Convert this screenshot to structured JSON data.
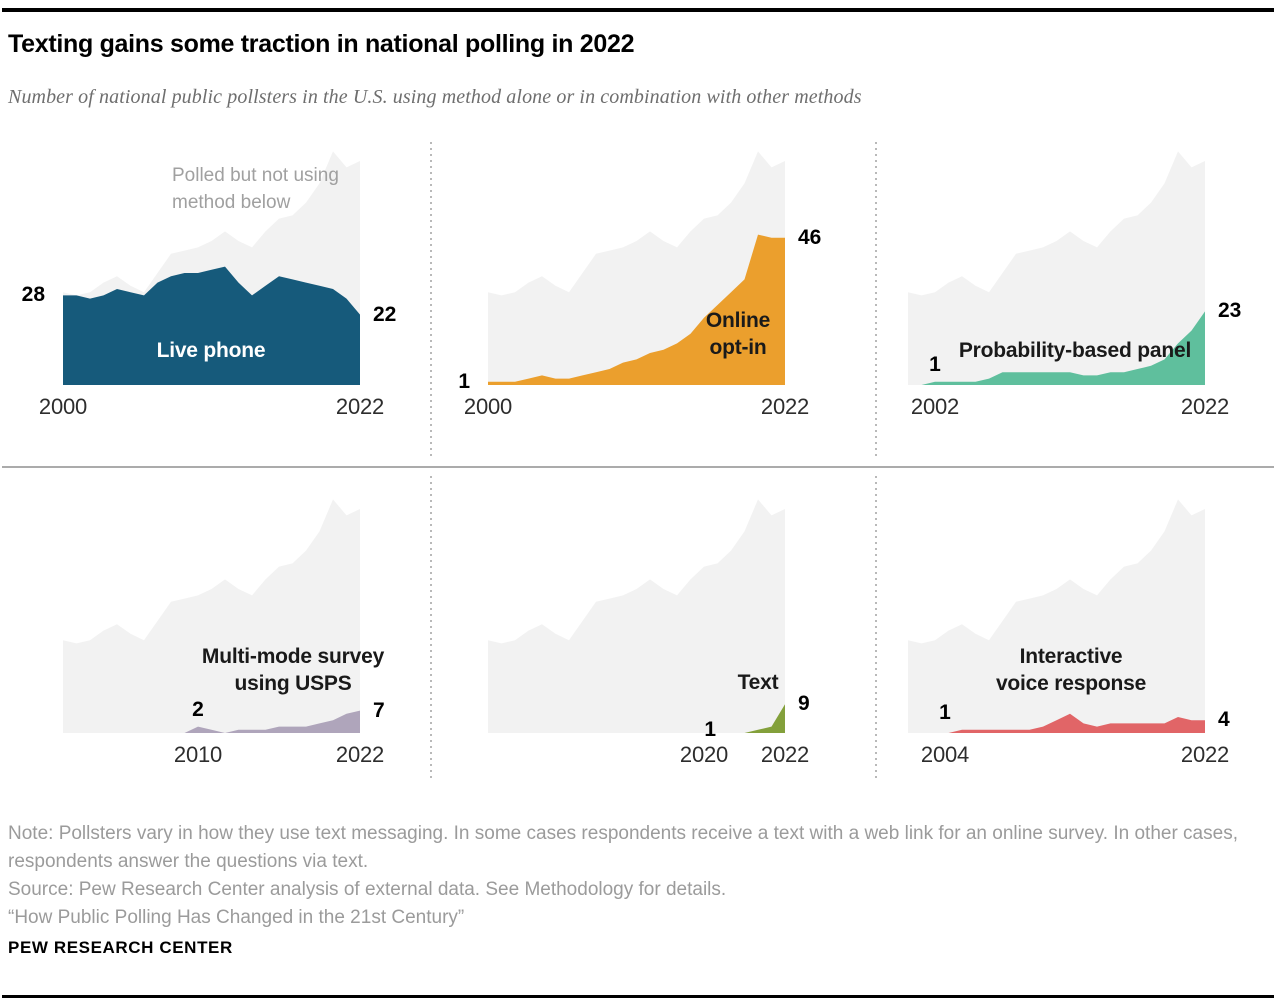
{
  "header": {
    "title": "Texting gains some traction in national polling in 2022",
    "subtitle": "Number of national public pollsters in the U.S. using method alone or in combination with other methods"
  },
  "chart_data": {
    "type": "area",
    "title": "Texting gains some traction in national polling in 2022",
    "x_range": [
      2000,
      2022
    ],
    "ylim": [
      0,
      75
    ],
    "grid": false,
    "years": [
      2000,
      2001,
      2002,
      2003,
      2004,
      2005,
      2006,
      2007,
      2008,
      2009,
      2010,
      2011,
      2012,
      2013,
      2014,
      2015,
      2016,
      2017,
      2018,
      2019,
      2020,
      2021,
      2022
    ],
    "background_series": {
      "label_line1": "Polled but not using",
      "label_line2": "method below",
      "color": "#f2f2f2",
      "values": [
        29,
        28,
        29,
        32,
        34,
        31,
        29,
        35,
        41,
        42,
        43,
        45,
        48,
        45,
        43,
        48,
        52,
        53,
        57,
        63,
        73,
        68,
        70
      ]
    },
    "panels": [
      {
        "id": "live-phone",
        "method": "Live phone",
        "label_lines": [
          "Live phone"
        ],
        "color": "#165a7b",
        "label_text_color": "#ffffff",
        "values": [
          28,
          28,
          27,
          28,
          30,
          29,
          28,
          32,
          34,
          35,
          35,
          36,
          37,
          32,
          28,
          31,
          34,
          33,
          32,
          31,
          30,
          27,
          22
        ],
        "start_label": {
          "text": "28",
          "year": 2000,
          "value": 28
        },
        "end_label": {
          "text": "22",
          "value": 22
        },
        "ticks": {
          "start": "2000",
          "end": "2022"
        }
      },
      {
        "id": "online-opt-in",
        "method": "Online opt-in",
        "label_lines": [
          "Online",
          "opt-in"
        ],
        "color": "#eb9f2d",
        "label_text_color": "#1a1a1a",
        "values": [
          1,
          1,
          1,
          2,
          3,
          2,
          2,
          3,
          4,
          5,
          7,
          8,
          10,
          11,
          13,
          16,
          21,
          25,
          29,
          33,
          47,
          46,
          46
        ],
        "start_label": {
          "text": "1",
          "year": 2000,
          "value": 1
        },
        "end_label": {
          "text": "46",
          "value": 46
        },
        "ticks": {
          "start": "2000",
          "end": "2022"
        }
      },
      {
        "id": "probability-based-panel",
        "method": "Probability-based panel",
        "label_lines": [
          "Probability-based panel"
        ],
        "color": "#5fbf9d",
        "label_text_color": "#1a1a1a",
        "values": [
          0,
          0,
          1,
          1,
          1,
          1,
          2,
          4,
          4,
          4,
          4,
          4,
          4,
          3,
          3,
          4,
          4,
          5,
          6,
          8,
          13,
          17,
          23
        ],
        "start_label": {
          "text": "1",
          "year": 2002,
          "value": 1
        },
        "end_label": {
          "text": "23",
          "value": 23
        },
        "ticks": {
          "start": "2002",
          "end": "2022"
        }
      },
      {
        "id": "multi-mode-usps",
        "method": "Multi-mode survey using USPS",
        "label_lines": [
          "Multi-mode survey",
          "using USPS"
        ],
        "color": "#afa5bb",
        "label_text_color": "#1a1a1a",
        "values": [
          null,
          null,
          null,
          null,
          null,
          null,
          null,
          null,
          null,
          0,
          2,
          1,
          0,
          1,
          1,
          1,
          2,
          2,
          2,
          3,
          4,
          6,
          7
        ],
        "start_label": {
          "text": "2",
          "year": 2010,
          "value": 2
        },
        "end_label": {
          "text": "7",
          "value": 7
        },
        "ticks": {
          "start": "2010",
          "end": "2022"
        }
      },
      {
        "id": "text",
        "method": "Text",
        "label_lines": [
          "Text"
        ],
        "color": "#83a03b",
        "label_text_color": "#1a1a1a",
        "values": [
          null,
          null,
          null,
          null,
          null,
          null,
          null,
          null,
          null,
          null,
          null,
          null,
          null,
          null,
          null,
          null,
          null,
          null,
          null,
          0,
          1,
          2,
          9
        ],
        "start_label": {
          "text": "1",
          "year": 2020,
          "value": 1
        },
        "end_label": {
          "text": "9",
          "value": 9
        },
        "ticks": {
          "start": "2020",
          "end": "2022"
        }
      },
      {
        "id": "interactive-voice-response",
        "method": "Interactive voice response",
        "label_lines": [
          "Interactive",
          "voice response"
        ],
        "color": "#e16567",
        "label_text_color": "#1a1a1a",
        "values": [
          null,
          null,
          0,
          0,
          1,
          1,
          1,
          1,
          1,
          1,
          2,
          4,
          6,
          3,
          2,
          3,
          3,
          3,
          3,
          3,
          5,
          4,
          4
        ],
        "start_label": {
          "text": "1",
          "year": 2004,
          "value": 1
        },
        "end_label": {
          "text": "4",
          "value": 4
        },
        "ticks": {
          "start": "2004",
          "end": "2022"
        }
      }
    ]
  },
  "colors": {
    "background_area": "#f2f2f2",
    "rule_black": "#000000",
    "row_divider_gray": "#ababab",
    "dotted_divider_gray": "#b9b9b9",
    "note_gray": "#9b9b9b",
    "tick_text": "#2d2d2d"
  },
  "footer": {
    "note": "Note: Pollsters vary in how they use text messaging. In some cases respondents receive a text with a web link for an online survey. In other cases, respondents answer the questions via text.",
    "source": "Source: Pew Research Center analysis of external data. See Methodology for details.",
    "quote": "“How Public Polling Has Changed in the 21st Century”",
    "brand": "PEW RESEARCH CENTER"
  }
}
